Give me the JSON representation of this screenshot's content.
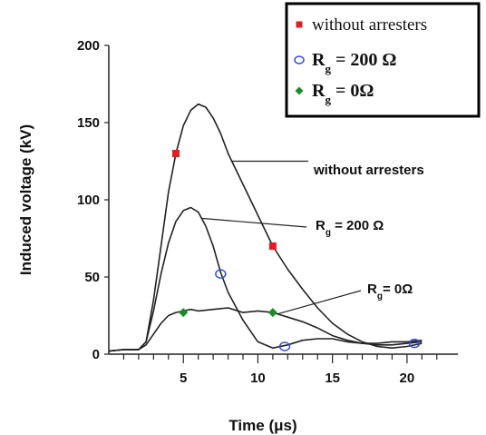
{
  "chart_data": {
    "type": "line",
    "title": "",
    "xlabel": "Time (μs)",
    "ylabel": "Induced voltage (kV)",
    "xlim": [
      0,
      22.5
    ],
    "ylim": [
      0,
      200
    ],
    "x_ticks": [
      "5",
      "10",
      "15",
      "20"
    ],
    "y_ticks": [
      "0",
      "50",
      "100",
      "150",
      "200"
    ],
    "grid": false,
    "legend_position": "top-right",
    "legend_box_border": "#000000",
    "series": [
      {
        "name": "without arresters",
        "color": "#222222",
        "marker": "square",
        "marker_color": "#e31b23",
        "x": [
          0,
          1,
          2,
          2.5,
          3,
          3.5,
          4,
          4.5,
          5,
          5.5,
          6,
          6.5,
          7,
          7.5,
          8,
          9,
          10,
          11,
          12,
          13,
          14,
          15,
          16,
          17,
          18,
          19,
          20,
          21
        ],
        "y": [
          2,
          3,
          3,
          8,
          35,
          70,
          105,
          130,
          148,
          158,
          162,
          160,
          153,
          143,
          130,
          110,
          90,
          70,
          55,
          42,
          30,
          20,
          13,
          8,
          5,
          4,
          5,
          7
        ],
        "marker_points": [
          [
            4.5,
            130
          ],
          [
            11,
            70
          ]
        ]
      },
      {
        "name": "R_g = 200 Ω",
        "color": "#222222",
        "marker": "circle-open",
        "marker_color": "#2f4de0",
        "x": [
          0,
          1,
          2,
          2.5,
          3,
          3.5,
          4,
          4.5,
          5,
          5.5,
          6,
          6.5,
          7,
          7.5,
          8,
          9,
          10,
          11,
          12,
          13,
          14,
          15,
          16,
          17,
          18,
          19,
          20,
          21
        ],
        "y": [
          2,
          3,
          3,
          8,
          28,
          52,
          72,
          86,
          93,
          95,
          92,
          83,
          70,
          53,
          40,
          22,
          8,
          4,
          6,
          9,
          10,
          10,
          8,
          7,
          7,
          8,
          8,
          9
        ],
        "marker_points": [
          [
            7.5,
            52
          ],
          [
            11.8,
            5
          ],
          [
            20.5,
            7
          ]
        ]
      },
      {
        "name": "R_g = 0Ω",
        "color": "#222222",
        "marker": "diamond",
        "marker_color": "#1e8a2a",
        "x": [
          0,
          1,
          2,
          2.5,
          3,
          3.5,
          4,
          4.5,
          5,
          5.5,
          6,
          7,
          8,
          9,
          10,
          11,
          12,
          13,
          14,
          15,
          16,
          17,
          18,
          19,
          20,
          21
        ],
        "y": [
          2,
          3,
          3,
          6,
          13,
          20,
          25,
          27,
          28,
          29,
          28,
          29,
          30,
          27,
          28,
          27,
          24,
          21,
          17,
          12,
          9,
          7,
          6,
          6,
          7,
          8
        ],
        "marker_points": [
          [
            5,
            27
          ],
          [
            11,
            27
          ]
        ]
      }
    ],
    "legend": [
      {
        "marker": "square",
        "color": "#e31b23",
        "label": "without arresters",
        "sub": "",
        "rest": ""
      },
      {
        "marker": "circle-open",
        "color": "#2f4de0",
        "label": "R",
        "sub": "g",
        "rest": " = 200 Ω"
      },
      {
        "marker": "diamond",
        "color": "#1e8a2a",
        "label": "R",
        "sub": "g",
        "rest": " = 0Ω"
      }
    ],
    "annotations": [
      {
        "target_series": 0,
        "label": "without arresters",
        "sub": "",
        "rest": ""
      },
      {
        "target_series": 1,
        "label": "R",
        "sub": "g",
        "rest": " = 200 Ω"
      },
      {
        "target_series": 2,
        "label": "R",
        "sub": "g",
        "rest": "= 0Ω"
      }
    ]
  }
}
